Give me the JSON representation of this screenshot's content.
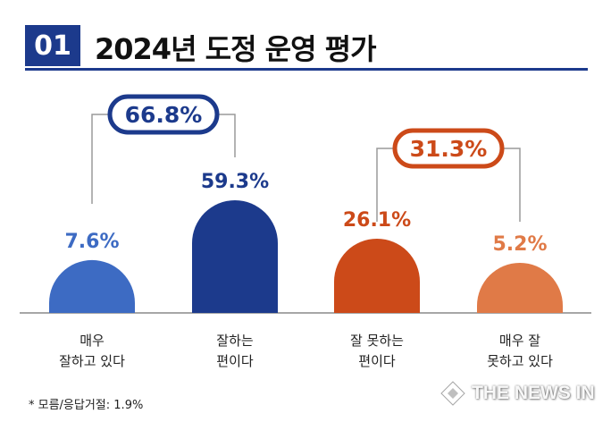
{
  "header": {
    "number": "01",
    "title": "2024년 도정 운영 평가"
  },
  "chart_data": {
    "type": "bar",
    "title": "2024년 도정 운영 평가",
    "categories": [
      [
        "매우",
        "잘하고 있다"
      ],
      [
        "잘하는",
        "편이다"
      ],
      [
        "잘 못하는",
        "편이다"
      ],
      [
        "매우 잘",
        "못하고 있다"
      ]
    ],
    "values": [
      7.6,
      59.3,
      26.1,
      5.2
    ],
    "value_labels": [
      "7.6%",
      "59.3%",
      "26.1%",
      "5.2%"
    ],
    "colors": [
      "#3d6bc3",
      "#1c3a8c",
      "#cc4a19",
      "#e07a47"
    ],
    "groups": [
      {
        "label": "66.8%",
        "value": 66.8,
        "members": [
          0,
          1
        ],
        "color": "#1c3a8c"
      },
      {
        "label": "31.3%",
        "value": 31.3,
        "members": [
          2,
          3
        ],
        "color": "#cc4a19"
      }
    ]
  },
  "footnote": "* 모름/응답거절: 1.9%",
  "watermark": {
    "text": "THE NEWS IN"
  }
}
